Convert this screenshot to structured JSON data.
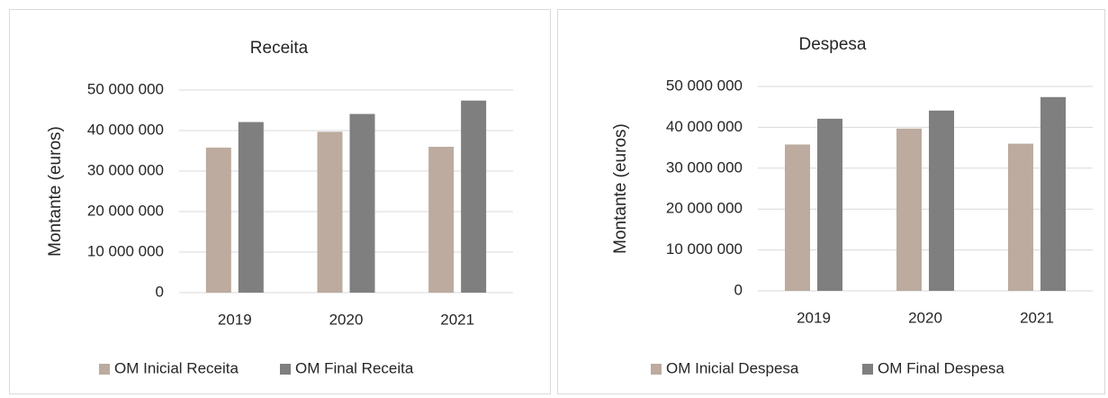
{
  "chart_data": [
    {
      "type": "bar",
      "title": "Receita",
      "y_label": "Montante (euros)",
      "categories": [
        "2019",
        "2020",
        "2021"
      ],
      "series": [
        {
          "name": "OM Inicial Receita",
          "color": "#bcab9e",
          "values": [
            35800000,
            39700000,
            36000000
          ]
        },
        {
          "name": "OM Final Receita",
          "color": "#7f7f7f",
          "values": [
            42100000,
            44100000,
            47400000
          ]
        }
      ],
      "ylim": [
        0,
        50000000
      ],
      "yticks": [
        0,
        {
          "value": 10000000,
          "label": "10 000 000"
        },
        {
          "value": 20000000,
          "label": "20 000 000"
        },
        {
          "value": 30000000,
          "label": "30 000 000"
        },
        {
          "value": 40000000,
          "label": "40 000 000"
        },
        {
          "value": 50000000,
          "label": "50 000 000"
        }
      ],
      "grid": true,
      "legend": "bottom"
    },
    {
      "type": "bar",
      "title": "Despesa",
      "y_label": "Montante (euros)",
      "categories": [
        "2019",
        "2020",
        "2021"
      ],
      "series": [
        {
          "name": "OM Inicial Despesa",
          "color": "#bcab9e",
          "values": [
            35800000,
            39700000,
            36000000
          ]
        },
        {
          "name": "OM Final Despesa",
          "color": "#7f7f7f",
          "values": [
            42100000,
            44100000,
            47400000
          ]
        }
      ],
      "ylim": [
        0,
        50000000
      ],
      "yticks": [
        0,
        {
          "value": 10000000,
          "label": "10 000 000"
        },
        {
          "value": 20000000,
          "label": "20 000 000"
        },
        {
          "value": 30000000,
          "label": "30 000 000"
        },
        {
          "value": 40000000,
          "label": "40 000 000"
        },
        {
          "value": 50000000,
          "label": "50 000 000"
        }
      ],
      "grid": true,
      "legend": "bottom"
    }
  ]
}
